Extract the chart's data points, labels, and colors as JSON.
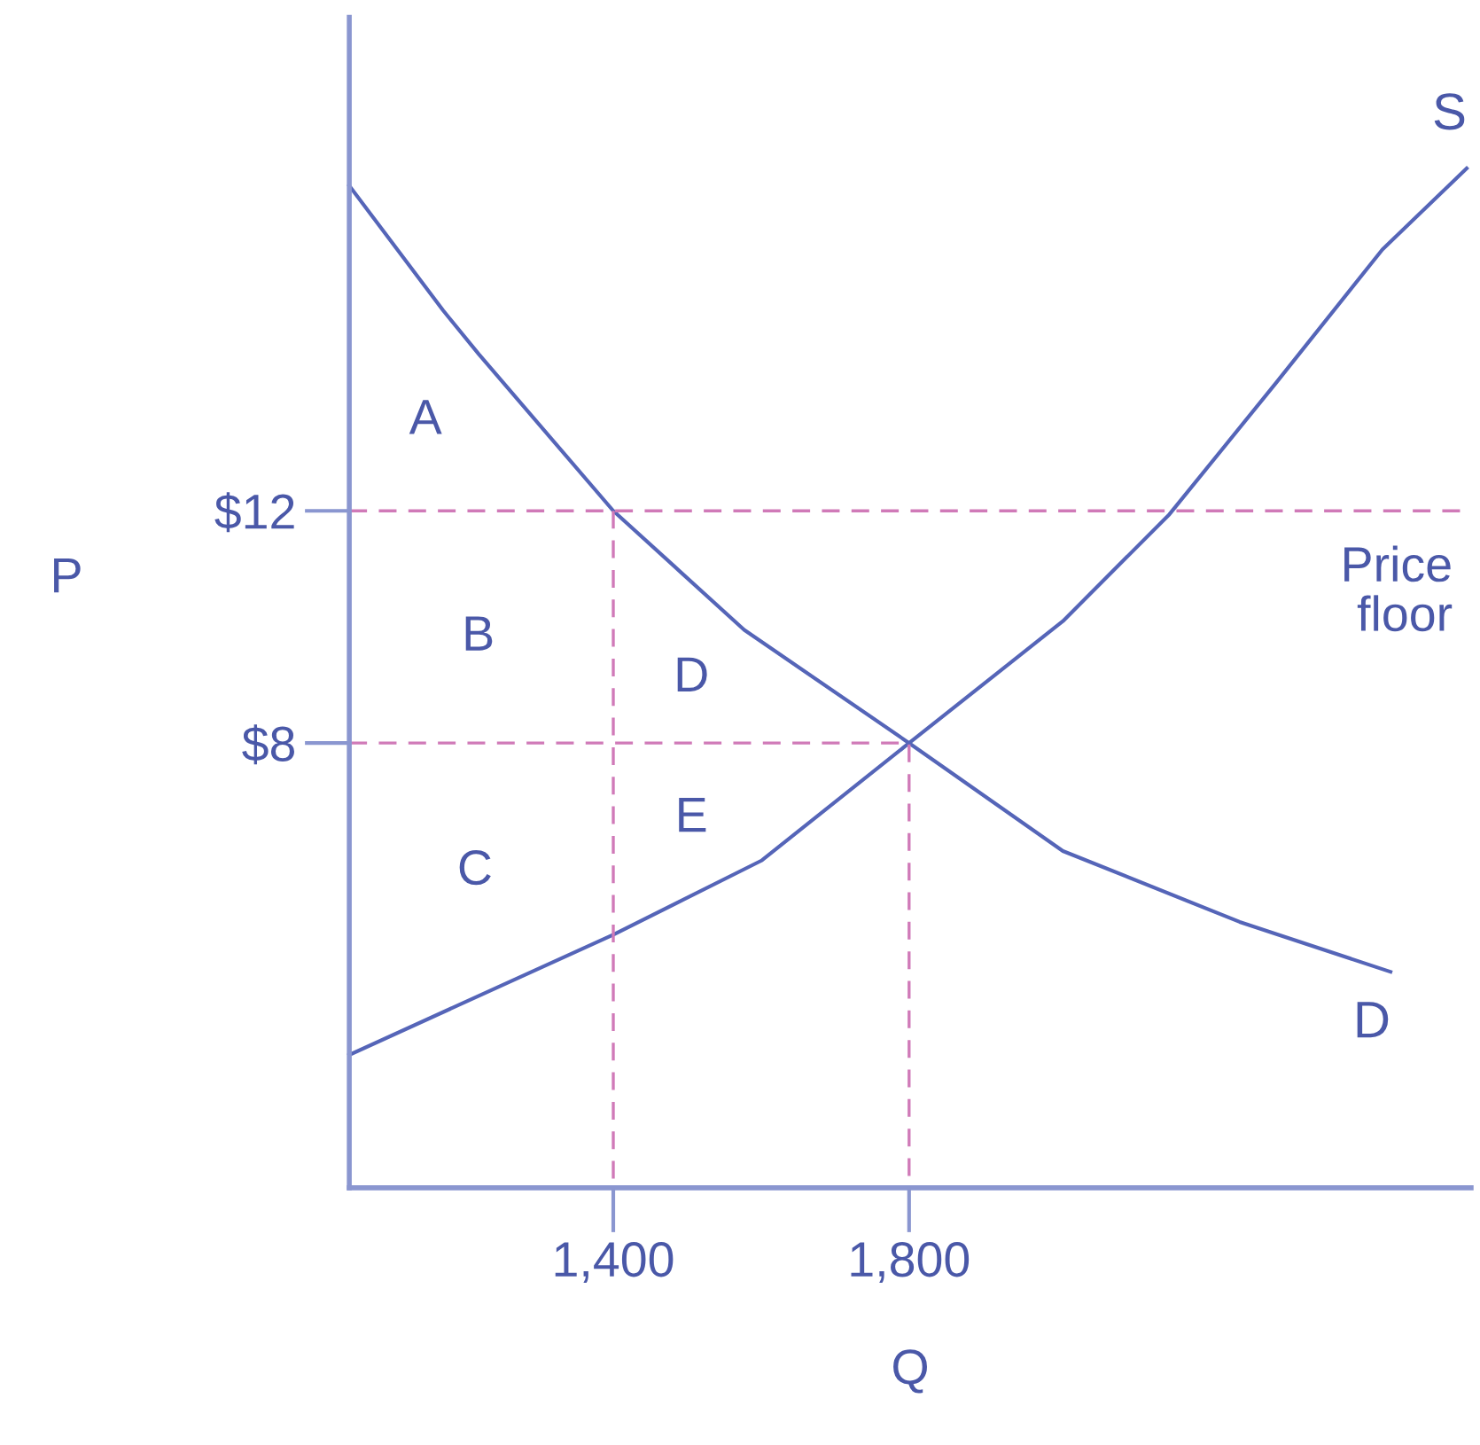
{
  "chart_data": {
    "type": "line",
    "xlabel": "Q",
    "ylabel": "P",
    "xlim": [
      1043,
      2560
    ],
    "ylim": [
      0.34,
      20.5
    ],
    "xticks": [
      {
        "value": 1400,
        "label": "1,400"
      },
      {
        "value": 1800,
        "label": "1,800"
      }
    ],
    "yticks": [
      {
        "value": 8,
        "label": "$8"
      },
      {
        "value": 12,
        "label": "$12"
      }
    ],
    "grid": false,
    "legend": false,
    "marker": "none",
    "line_style": "solid",
    "series": [
      {
        "name": "S",
        "color": "#5565b8",
        "x": [
          1043,
          1400,
          1601,
          1800,
          2008,
          2152,
          2296,
          2440,
          2554
        ],
        "values": [
          2.63,
          4.7,
          5.98,
          8,
          10.1,
          11.94,
          14.2,
          16.5,
          17.9
        ]
      },
      {
        "name": "D",
        "color": "#5565b8",
        "x": [
          1043,
          1170,
          1218,
          1400,
          1577,
          1800,
          2008,
          2247,
          2451
        ],
        "values": [
          17.6,
          15.45,
          14.7,
          12,
          9.95,
          8,
          6.14,
          4.92,
          4.06
        ]
      },
      {
        "color": "#d07ab8",
        "line_style": "dashed",
        "x": [
          1043,
          1800,
          1800
        ],
        "values": [
          8,
          8,
          0.34
        ]
      },
      {
        "color": "#d07ab8",
        "line_style": "dashed",
        "x": [
          1400,
          1400
        ],
        "values": [
          12,
          0.34
        ]
      }
    ],
    "ref_lines": [
      {
        "axis": "y",
        "value": 12,
        "label": "Price\nfloor",
        "color": "#d07ab8",
        "line_style": "dashed"
      }
    ],
    "annotations": [
      "A",
      "B",
      "C",
      "D",
      "E"
    ]
  }
}
